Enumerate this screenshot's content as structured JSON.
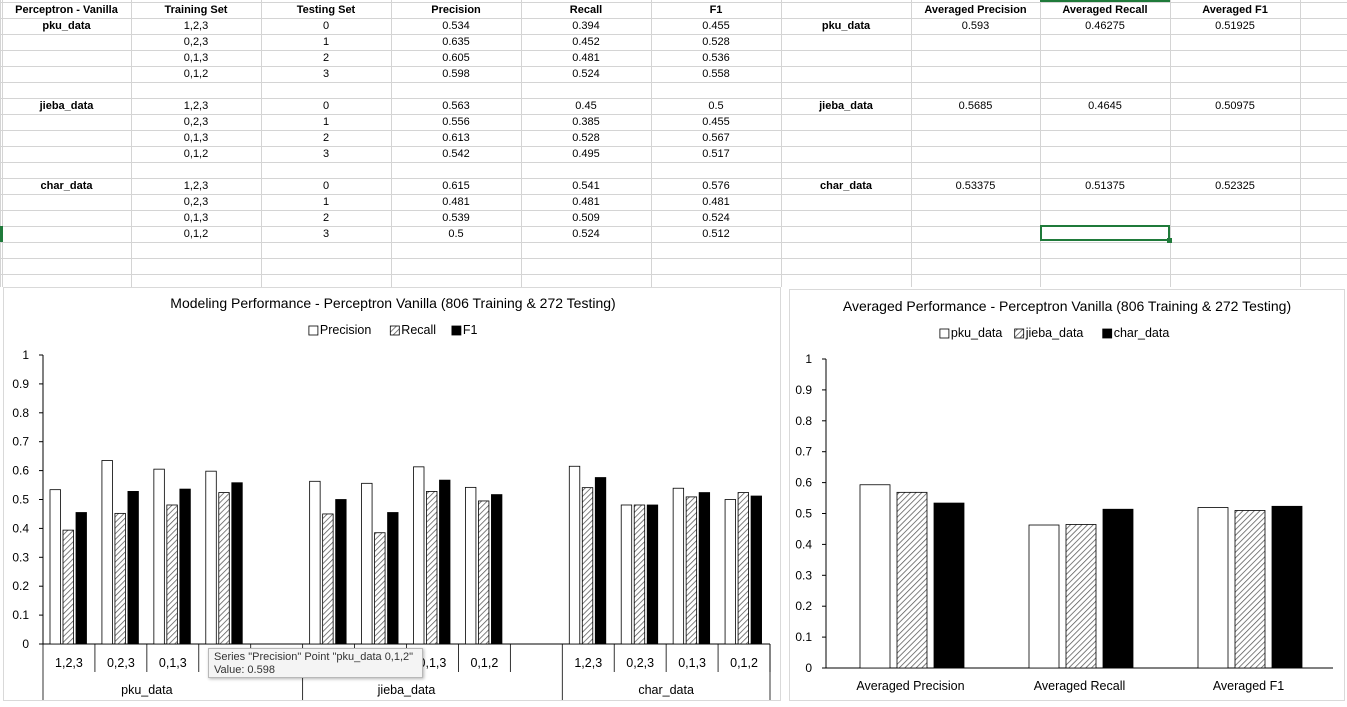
{
  "sheet": {
    "headers": [
      "Perceptron - Vanilla",
      "Training Set",
      "Testing Set",
      "Precision",
      "Recall",
      "F1"
    ],
    "avg_headers": [
      "Averaged Precision",
      "Averaged Recall",
      "Averaged F1"
    ],
    "groups": [
      {
        "name": "pku_data",
        "rows": [
          [
            "1,2,3",
            "0",
            "0.534",
            "0.394",
            "0.455"
          ],
          [
            "0,2,3",
            "1",
            "0.635",
            "0.452",
            "0.528"
          ],
          [
            "0,1,3",
            "2",
            "0.605",
            "0.481",
            "0.536"
          ],
          [
            "0,1,2",
            "3",
            "0.598",
            "0.524",
            "0.558"
          ]
        ],
        "avg": [
          "0.593",
          "0.46275",
          "0.51925"
        ]
      },
      {
        "name": "jieba_data",
        "rows": [
          [
            "1,2,3",
            "0",
            "0.563",
            "0.45",
            "0.5"
          ],
          [
            "0,2,3",
            "1",
            "0.556",
            "0.385",
            "0.455"
          ],
          [
            "0,1,3",
            "2",
            "0.613",
            "0.528",
            "0.567"
          ],
          [
            "0,1,2",
            "3",
            "0.542",
            "0.495",
            "0.517"
          ]
        ],
        "avg": [
          "0.5685",
          "0.4645",
          "0.50975"
        ]
      },
      {
        "name": "char_data",
        "rows": [
          [
            "1,2,3",
            "0",
            "0.615",
            "0.541",
            "0.576"
          ],
          [
            "0,2,3",
            "1",
            "0.481",
            "0.481",
            "0.481"
          ],
          [
            "0,1,3",
            "2",
            "0.539",
            "0.509",
            "0.524"
          ],
          [
            "0,1,2",
            "3",
            "0.5",
            "0.524",
            "0.512"
          ]
        ],
        "avg": [
          "0.53375",
          "0.51375",
          "0.52325"
        ]
      }
    ]
  },
  "tooltip": {
    "line1": "Series \"Precision\" Point \"pku_data 0,1,2\"",
    "line2": "Value: 0.598"
  },
  "colors": {
    "gridline": "#d4d4d4",
    "axis": "#000000",
    "selection": "#1f7a3a",
    "hatch": "#555555"
  },
  "chart_data": [
    {
      "type": "bar",
      "title": "Modeling Performance - Perceptron Vanilla (806 Training & 272 Testing)",
      "groups": [
        "pku_data",
        "jieba_data",
        "char_data"
      ],
      "categories": [
        "1,2,3",
        "0,2,3",
        "0,1,3",
        "0,1,2"
      ],
      "series": [
        {
          "name": "Precision",
          "style": "white",
          "values": [
            [
              0.534,
              0.635,
              0.605,
              0.598
            ],
            [
              0.563,
              0.556,
              0.613,
              0.542
            ],
            [
              0.615,
              0.481,
              0.539,
              0.5
            ]
          ]
        },
        {
          "name": "Recall",
          "style": "hatch",
          "values": [
            [
              0.394,
              0.452,
              0.481,
              0.524
            ],
            [
              0.45,
              0.385,
              0.528,
              0.495
            ],
            [
              0.541,
              0.481,
              0.509,
              0.524
            ]
          ]
        },
        {
          "name": "F1",
          "style": "black",
          "values": [
            [
              0.455,
              0.528,
              0.536,
              0.558
            ],
            [
              0.5,
              0.455,
              0.567,
              0.517
            ],
            [
              0.576,
              0.481,
              0.524,
              0.512
            ]
          ]
        }
      ],
      "ylim": [
        0,
        1
      ],
      "yticks": [
        "0",
        "0.1",
        "0.2",
        "0.3",
        "0.4",
        "0.5",
        "0.6",
        "0.7",
        "0.8",
        "0.9",
        "1"
      ],
      "legend": "top-center"
    },
    {
      "type": "bar",
      "title": "Averaged Performance - Perceptron Vanilla (806 Training & 272 Testing)",
      "categories": [
        "Averaged Precision",
        "Averaged Recall",
        "Averaged F1"
      ],
      "series": [
        {
          "name": "pku_data",
          "style": "white",
          "values": [
            0.593,
            0.46275,
            0.51925
          ]
        },
        {
          "name": "jieba_data",
          "style": "hatch",
          "values": [
            0.5685,
            0.4645,
            0.50975
          ]
        },
        {
          "name": "char_data",
          "style": "black",
          "values": [
            0.53375,
            0.51375,
            0.52325
          ]
        }
      ],
      "ylim": [
        0,
        1
      ],
      "yticks": [
        "0",
        "0.1",
        "0.2",
        "0.3",
        "0.4",
        "0.5",
        "0.6",
        "0.7",
        "0.8",
        "0.9",
        "1"
      ],
      "legend": "top-center"
    }
  ]
}
